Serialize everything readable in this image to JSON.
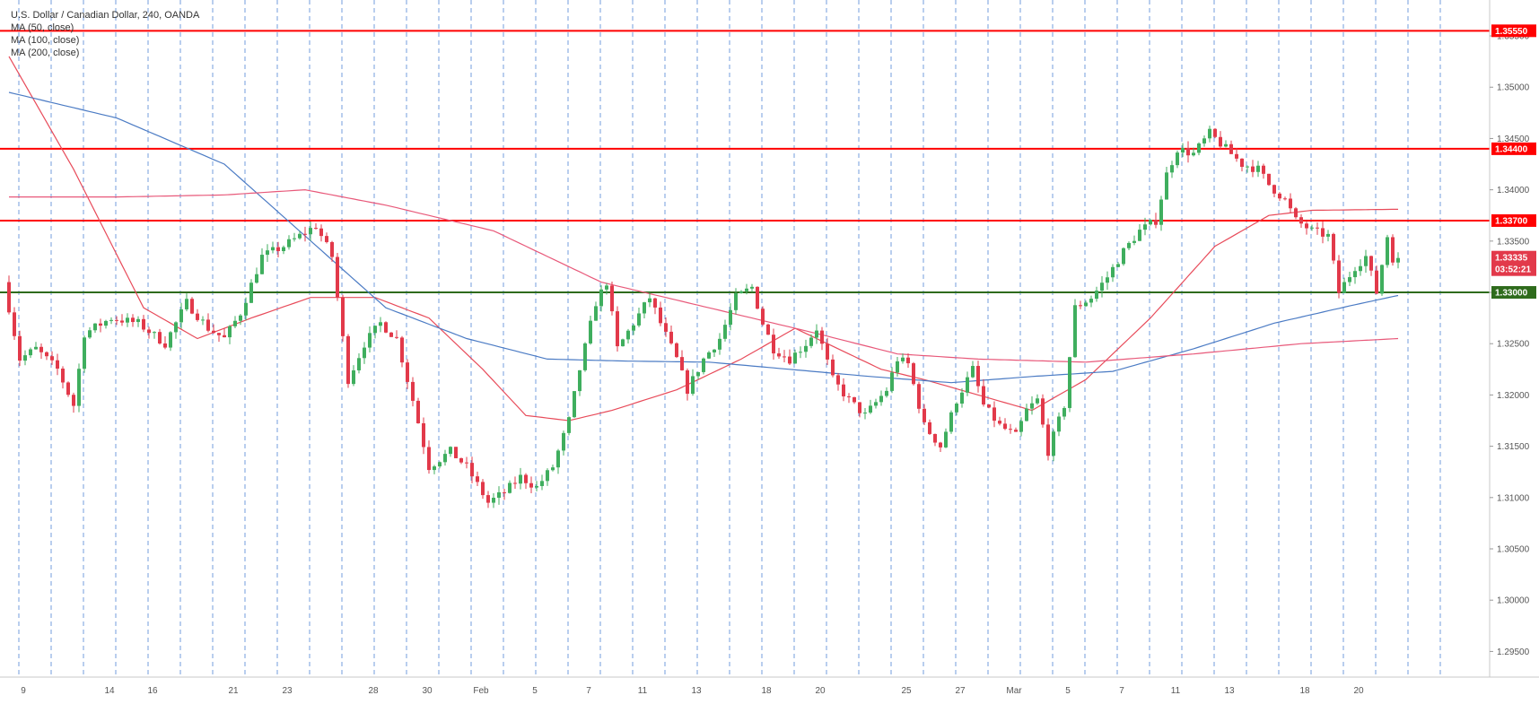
{
  "window": {
    "title": "U.S. Dollar / Canadian Dollar, 240, OANDA"
  },
  "legend": [
    "MA (50, close)",
    "MA (100, close)",
    "MA (200, close)"
  ],
  "colors": {
    "up": "#3fae5e",
    "down": "#e2394a",
    "ma50": "#e84b5a",
    "ma100": "#4b7bc4",
    "ma200": "#e8597a",
    "resistance": "#ff0000",
    "support": "#2e6b1c",
    "price_tag": "#e2394a",
    "session_line": "#5b8dd9"
  },
  "chart_data": {
    "type": "candlestick",
    "title": "U.S. Dollar / Canadian Dollar, 240, OANDA",
    "xlabel": "",
    "ylabel": "",
    "ylim": [
      1.2925,
      1.3585
    ],
    "y_ticks": [
      "1.29500",
      "1.30000",
      "1.30500",
      "1.31000",
      "1.31500",
      "1.32000",
      "1.32500",
      "1.33000",
      "1.33500",
      "1.34000",
      "1.34500",
      "1.35000",
      "1.35500"
    ],
    "x_ticks": [
      "9",
      "14",
      "16",
      "21",
      "23",
      "28",
      "30",
      "Feb",
      "5",
      "7",
      "11",
      "13",
      "18",
      "20",
      "25",
      "27",
      "Mar",
      "5",
      "7",
      "11",
      "13",
      "18",
      "20"
    ],
    "grid": "vertical dashed session lines",
    "legend_position": "top-left",
    "levels": [
      {
        "label": "1.35550",
        "value": 1.3555,
        "kind": "resistance"
      },
      {
        "label": "1.34400",
        "value": 1.344,
        "kind": "resistance"
      },
      {
        "label": "1.33700",
        "value": 1.337,
        "kind": "resistance"
      },
      {
        "label": "1.33000",
        "value": 1.33,
        "kind": "support"
      }
    ],
    "last_price": {
      "label": "1.33335",
      "value": 1.33335,
      "countdown": "03:52:21"
    },
    "anchors": [
      [
        0,
        1.331
      ],
      [
        3,
        1.3235
      ],
      [
        6,
        1.3245
      ],
      [
        10,
        1.3225
      ],
      [
        13,
        1.319
      ],
      [
        15,
        1.326
      ],
      [
        20,
        1.3275
      ],
      [
        25,
        1.327
      ],
      [
        30,
        1.325
      ],
      [
        34,
        1.329
      ],
      [
        38,
        1.3265
      ],
      [
        41,
        1.3255
      ],
      [
        44,
        1.328
      ],
      [
        48,
        1.3335
      ],
      [
        52,
        1.3345
      ],
      [
        55,
        1.3355
      ],
      [
        58,
        1.3365
      ],
      [
        61,
        1.3335
      ],
      [
        64,
        1.3215
      ],
      [
        67,
        1.325
      ],
      [
        70,
        1.327
      ],
      [
        73,
        1.3255
      ],
      [
        76,
        1.3195
      ],
      [
        79,
        1.313
      ],
      [
        83,
        1.3145
      ],
      [
        86,
        1.313
      ],
      [
        90,
        1.3095
      ],
      [
        93,
        1.3105
      ],
      [
        96,
        1.312
      ],
      [
        99,
        1.311
      ],
      [
        102,
        1.313
      ],
      [
        105,
        1.3175
      ],
      [
        107,
        1.3225
      ],
      [
        110,
        1.329
      ],
      [
        112,
        1.331
      ],
      [
        114,
        1.3245
      ],
      [
        117,
        1.327
      ],
      [
        120,
        1.3295
      ],
      [
        122,
        1.327
      ],
      [
        125,
        1.3235
      ],
      [
        127,
        1.3205
      ],
      [
        130,
        1.3235
      ],
      [
        133,
        1.3255
      ],
      [
        136,
        1.3295
      ],
      [
        139,
        1.3305
      ],
      [
        141,
        1.327
      ],
      [
        143,
        1.3245
      ],
      [
        146,
        1.3235
      ],
      [
        149,
        1.325
      ],
      [
        151,
        1.3265
      ],
      [
        154,
        1.3215
      ],
      [
        157,
        1.3195
      ],
      [
        160,
        1.318
      ],
      [
        164,
        1.3205
      ],
      [
        166,
        1.3235
      ],
      [
        168,
        1.323
      ],
      [
        171,
        1.317
      ],
      [
        174,
        1.315
      ],
      [
        177,
        1.3195
      ],
      [
        180,
        1.3225
      ],
      [
        182,
        1.319
      ],
      [
        185,
        1.317
      ],
      [
        188,
        1.316
      ],
      [
        190,
        1.3185
      ],
      [
        192,
        1.3195
      ],
      [
        194,
        1.3145
      ],
      [
        197,
        1.319
      ],
      [
        199,
        1.3285
      ],
      [
        202,
        1.3295
      ],
      [
        205,
        1.3315
      ],
      [
        208,
        1.334
      ],
      [
        211,
        1.336
      ],
      [
        214,
        1.337
      ],
      [
        216,
        1.3415
      ],
      [
        218,
        1.344
      ],
      [
        221,
        1.3435
      ],
      [
        224,
        1.3455
      ],
      [
        227,
        1.344
      ],
      [
        230,
        1.3425
      ],
      [
        233,
        1.342
      ],
      [
        235,
        1.3405
      ],
      [
        238,
        1.339
      ],
      [
        240,
        1.337
      ],
      [
        243,
        1.336
      ],
      [
        246,
        1.3355
      ],
      [
        248,
        1.33
      ],
      [
        251,
        1.3325
      ],
      [
        253,
        1.3335
      ],
      [
        255,
        1.33
      ],
      [
        257,
        1.3355
      ],
      [
        258,
        1.33335
      ]
    ],
    "ma": [
      {
        "name": "MA (50, close)",
        "points": [
          [
            0,
            1.353
          ],
          [
            12,
            1.342
          ],
          [
            25,
            1.3285
          ],
          [
            35,
            1.3255
          ],
          [
            45,
            1.3275
          ],
          [
            56,
            1.3295
          ],
          [
            68,
            1.3295
          ],
          [
            78,
            1.3275
          ],
          [
            88,
            1.3225
          ],
          [
            96,
            1.318
          ],
          [
            104,
            1.3175
          ],
          [
            112,
            1.3185
          ],
          [
            124,
            1.3205
          ],
          [
            136,
            1.3235
          ],
          [
            146,
            1.3265
          ],
          [
            154,
            1.3245
          ],
          [
            162,
            1.3225
          ],
          [
            170,
            1.3215
          ],
          [
            180,
            1.32
          ],
          [
            190,
            1.3185
          ],
          [
            200,
            1.3215
          ],
          [
            212,
            1.3275
          ],
          [
            224,
            1.3345
          ],
          [
            234,
            1.3375
          ],
          [
            242,
            1.338
          ],
          [
            258,
            1.3381
          ]
        ]
      },
      {
        "name": "MA (100, close)",
        "points": [
          [
            0,
            1.3495
          ],
          [
            20,
            1.347
          ],
          [
            40,
            1.3425
          ],
          [
            55,
            1.3355
          ],
          [
            70,
            1.3285
          ],
          [
            85,
            1.3255
          ],
          [
            100,
            1.3235
          ],
          [
            115,
            1.3233
          ],
          [
            130,
            1.3232
          ],
          [
            145,
            1.3225
          ],
          [
            160,
            1.3218
          ],
          [
            175,
            1.3212
          ],
          [
            190,
            1.3218
          ],
          [
            205,
            1.3223
          ],
          [
            220,
            1.3245
          ],
          [
            235,
            1.327
          ],
          [
            250,
            1.3288
          ],
          [
            258,
            1.3297
          ]
        ]
      },
      {
        "name": "MA (200, close)",
        "points": [
          [
            0,
            1.3393
          ],
          [
            20,
            1.3393
          ],
          [
            40,
            1.3395
          ],
          [
            55,
            1.34
          ],
          [
            70,
            1.3385
          ],
          [
            90,
            1.336
          ],
          [
            110,
            1.331
          ],
          [
            130,
            1.3285
          ],
          [
            150,
            1.326
          ],
          [
            165,
            1.324
          ],
          [
            180,
            1.3235
          ],
          [
            200,
            1.3232
          ],
          [
            220,
            1.324
          ],
          [
            240,
            1.325
          ],
          [
            258,
            1.3255
          ]
        ]
      }
    ],
    "n_bars": 259
  }
}
